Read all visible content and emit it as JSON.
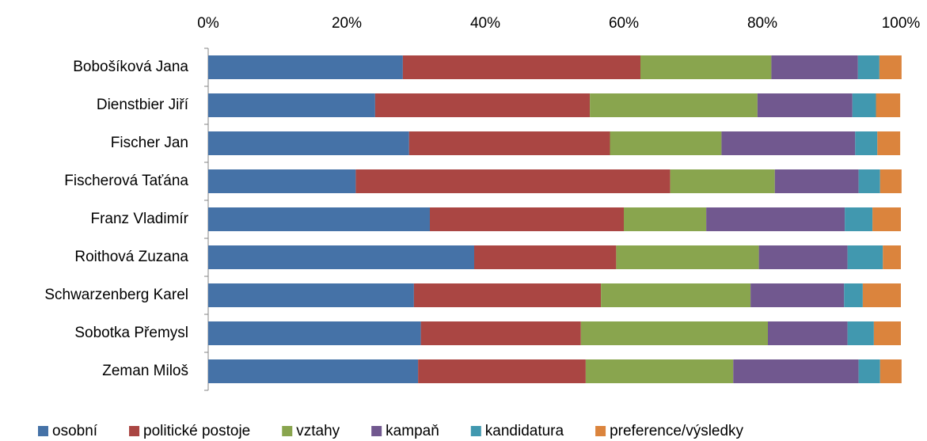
{
  "chart_data": {
    "type": "bar",
    "orientation": "horizontal",
    "stacked": true,
    "categories": [
      "Bobošíková Jana",
      "Dienstbier Jiří",
      "Fischer Jan",
      "Fischerová Taťána",
      "Franz Vladimír",
      "Roithová Zuzana",
      "Schwarzenberg Karel",
      "Sobotka Přemysl",
      "Zeman Miloš"
    ],
    "series": [
      {
        "name": "osobní",
        "color": "#4572a7",
        "values": [
          28.1,
          24.1,
          29.0,
          21.3,
          32.0,
          38.4,
          29.7,
          30.7,
          30.3
        ]
      },
      {
        "name": "politické postoje",
        "color": "#aa4643",
        "values": [
          34.3,
          31.0,
          29.0,
          45.4,
          28.0,
          20.5,
          27.0,
          23.1,
          24.2
        ]
      },
      {
        "name": "vztahy",
        "color": "#89a54e",
        "values": [
          18.9,
          24.2,
          16.1,
          15.1,
          11.9,
          20.6,
          21.6,
          27.0,
          21.3
        ]
      },
      {
        "name": "kampaň",
        "color": "#71588f",
        "values": [
          12.5,
          13.7,
          19.3,
          12.1,
          20.0,
          12.8,
          13.5,
          11.5,
          18.1
        ]
      },
      {
        "name": "kandidatura",
        "color": "#4198af",
        "values": [
          3.1,
          3.4,
          3.2,
          3.1,
          4.0,
          5.1,
          2.7,
          3.8,
          3.1
        ]
      },
      {
        "name": "preference/výsledky",
        "color": "#db843d",
        "values": [
          3.2,
          3.5,
          3.3,
          3.1,
          4.1,
          2.6,
          5.5,
          3.9,
          3.1
        ]
      }
    ],
    "xlim": [
      0,
      100
    ],
    "xticks": [
      {
        "value": 0,
        "label": "0%"
      },
      {
        "value": 20,
        "label": "20%"
      },
      {
        "value": 40,
        "label": "40%"
      },
      {
        "value": 60,
        "label": "60%"
      },
      {
        "value": 80,
        "label": "80%"
      },
      {
        "value": 100,
        "label": "100%"
      }
    ],
    "legend": "bottom"
  }
}
